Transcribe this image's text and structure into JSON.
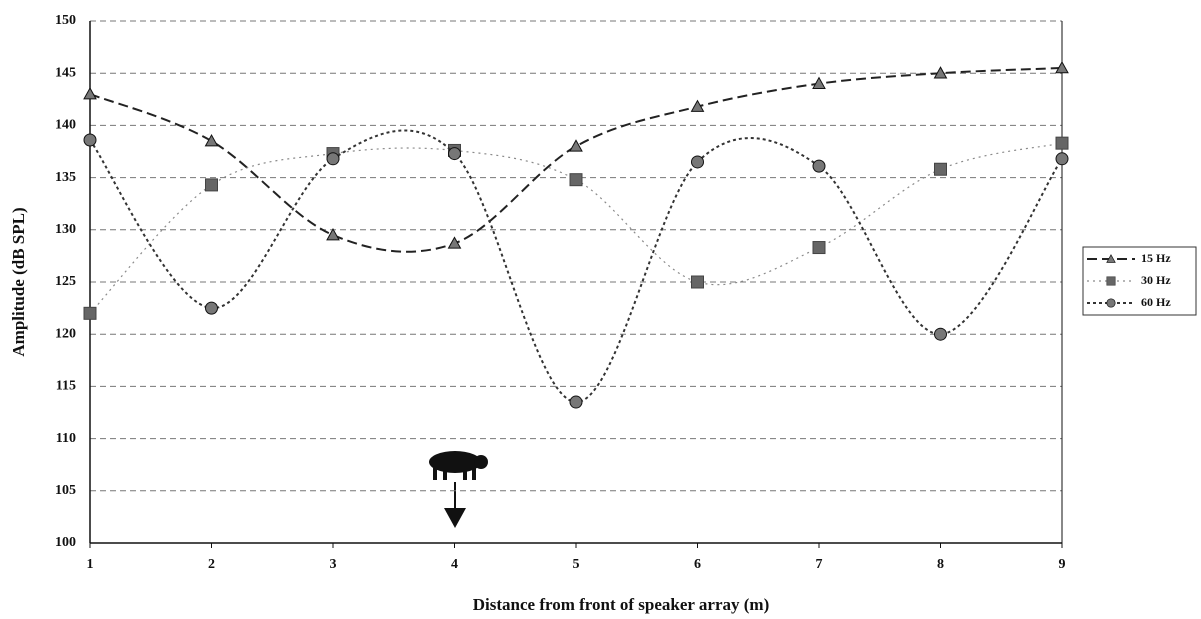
{
  "chart_data": {
    "type": "line",
    "x_label": "Distance from front of speaker array (m)",
    "y_label": "Amplitude (dB SPL)",
    "x": [
      1,
      2,
      3,
      4,
      5,
      6,
      7,
      8,
      9
    ],
    "xlim": [
      1,
      9
    ],
    "xticks": [
      1,
      2,
      3,
      4,
      5,
      6,
      7,
      8,
      9
    ],
    "ylim": [
      100,
      150
    ],
    "yticks": [
      100,
      105,
      110,
      115,
      120,
      125,
      130,
      135,
      140,
      145,
      150
    ],
    "grid": true,
    "legend": "right",
    "series": [
      {
        "name": "15 Hz",
        "color": "#222222",
        "values": [
          143,
          138.5,
          129.5,
          128.7,
          138,
          141.8,
          144,
          145,
          145.5
        ]
      },
      {
        "name": "30 Hz",
        "color": "#8a8a8a",
        "values": [
          122,
          134.3,
          137.3,
          137.6,
          134.8,
          125,
          128.3,
          135.8,
          138.3
        ]
      },
      {
        "name": "60 Hz",
        "color": "#333333",
        "values": [
          138.6,
          122.5,
          136.8,
          137.3,
          113.5,
          136.5,
          136.1,
          120,
          136.8
        ]
      }
    ]
  }
}
